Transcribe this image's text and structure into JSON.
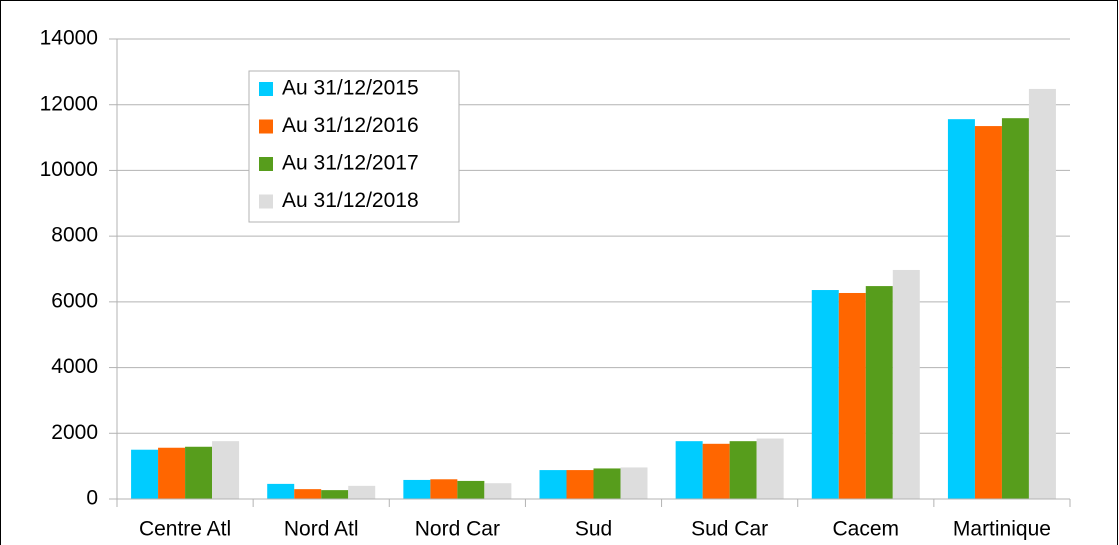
{
  "chart_data": {
    "type": "bar",
    "categories": [
      "Centre Atl",
      "Nord Atl",
      "Nord Car",
      "Sud",
      "Sud Car",
      "Cacem",
      "Martinique"
    ],
    "series": [
      {
        "name": "Au 31/12/2015",
        "color": "#00ccff",
        "values": [
          1500,
          460,
          580,
          880,
          1760,
          6360,
          11560
        ]
      },
      {
        "name": "Au 31/12/2016",
        "color": "#ff6600",
        "values": [
          1560,
          300,
          600,
          880,
          1680,
          6270,
          11350
        ]
      },
      {
        "name": "Au 31/12/2017",
        "color": "#579d1c",
        "values": [
          1590,
          270,
          550,
          930,
          1760,
          6480,
          11590
        ]
      },
      {
        "name": "Au 31/12/2018",
        "color": "#dddddd",
        "values": [
          1760,
          400,
          480,
          960,
          1840,
          6970,
          12480
        ]
      }
    ],
    "ylim": [
      0,
      14000
    ],
    "yticks": [
      0,
      2000,
      4000,
      6000,
      8000,
      10000,
      12000,
      14000
    ],
    "grid": true,
    "legend": "top-left"
  }
}
